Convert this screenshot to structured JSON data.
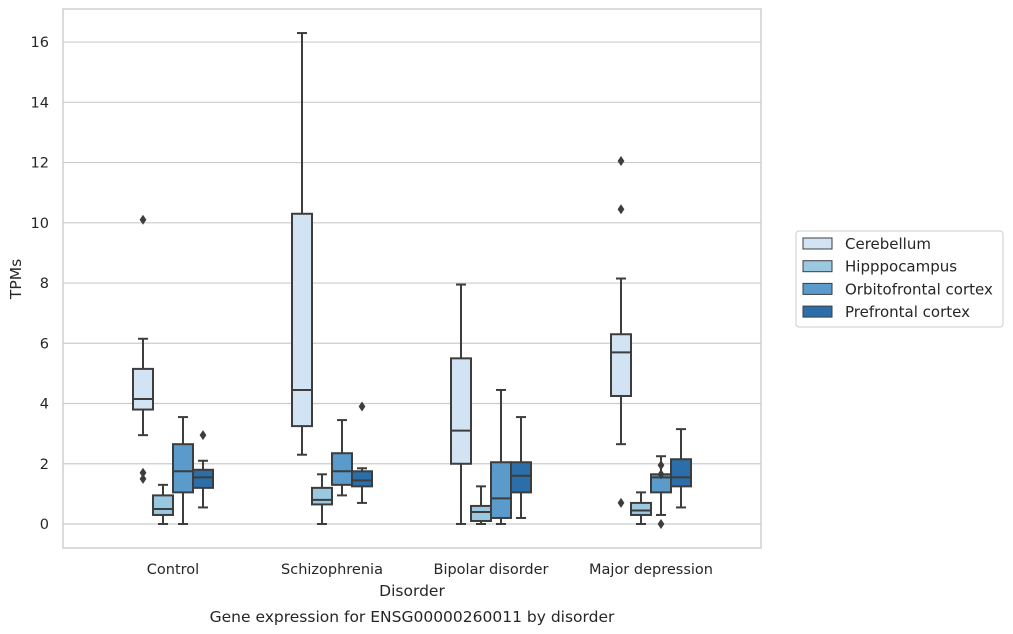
{
  "chart_data": {
    "type": "box",
    "xlabel": "Disorder",
    "ylabel": "TPMs",
    "caption": "Gene expression for ENSG00000260011 by disorder",
    "ylim": [
      -0.8,
      17.1
    ],
    "yticks": [
      0,
      2,
      4,
      6,
      8,
      10,
      12,
      14,
      16
    ],
    "grid": "horizontal",
    "legend_placement": "right",
    "categories": [
      "Control",
      "Schizophrenia",
      "Bipolar disorder",
      "Major depression"
    ],
    "series": [
      {
        "name": "Cerebellum",
        "color": "#d2e3f3",
        "boxes": [
          {
            "whislo": 2.95,
            "q1": 3.8,
            "med": 4.15,
            "q3": 5.15,
            "whishi": 6.15,
            "fliers": [
              10.1,
              1.7,
              1.5
            ]
          },
          {
            "whislo": 2.3,
            "q1": 3.25,
            "med": 4.45,
            "q3": 10.3,
            "whishi": 16.3,
            "fliers": []
          },
          {
            "whislo": 0.0,
            "q1": 2.0,
            "med": 3.1,
            "q3": 5.5,
            "whishi": 7.95,
            "fliers": []
          },
          {
            "whislo": 2.65,
            "q1": 4.25,
            "med": 5.7,
            "q3": 6.3,
            "whishi": 8.15,
            "fliers": [
              12.05,
              10.45,
              0.7
            ]
          }
        ]
      },
      {
        "name": "Hipppocampus",
        "color": "#9ac8e0",
        "boxes": [
          {
            "whislo": 0.0,
            "q1": 0.3,
            "med": 0.5,
            "q3": 0.95,
            "whishi": 1.3,
            "fliers": []
          },
          {
            "whislo": 0.0,
            "q1": 0.65,
            "med": 0.8,
            "q3": 1.2,
            "whishi": 1.65,
            "fliers": []
          },
          {
            "whislo": 0.0,
            "q1": 0.1,
            "med": 0.4,
            "q3": 0.6,
            "whishi": 1.25,
            "fliers": []
          },
          {
            "whislo": 0.0,
            "q1": 0.3,
            "med": 0.45,
            "q3": 0.7,
            "whishi": 1.05,
            "fliers": []
          }
        ]
      },
      {
        "name": "Orbitofrontal cortex",
        "color": "#5a9bcb",
        "boxes": [
          {
            "whislo": 0.0,
            "q1": 1.05,
            "med": 1.75,
            "q3": 2.65,
            "whishi": 3.55,
            "fliers": []
          },
          {
            "whislo": 0.95,
            "q1": 1.3,
            "med": 1.75,
            "q3": 2.35,
            "whishi": 3.45,
            "fliers": []
          },
          {
            "whislo": 0.0,
            "q1": 0.2,
            "med": 0.85,
            "q3": 2.05,
            "whishi": 4.45,
            "fliers": []
          },
          {
            "whislo": 0.3,
            "q1": 1.05,
            "med": 1.55,
            "q3": 1.65,
            "whishi": 2.25,
            "fliers": [
              1.95,
              1.65,
              0.0
            ]
          }
        ]
      },
      {
        "name": "Prefrontal cortex",
        "color": "#2c6ea9",
        "boxes": [
          {
            "whislo": 0.55,
            "q1": 1.2,
            "med": 1.55,
            "q3": 1.8,
            "whishi": 2.1,
            "fliers": [
              2.95
            ]
          },
          {
            "whislo": 0.7,
            "q1": 1.25,
            "med": 1.45,
            "q3": 1.75,
            "whishi": 1.85,
            "fliers": [
              3.9
            ]
          },
          {
            "whislo": 0.2,
            "q1": 1.05,
            "med": 1.6,
            "q3": 2.05,
            "whishi": 3.55,
            "fliers": []
          },
          {
            "whislo": 0.55,
            "q1": 1.25,
            "med": 1.55,
            "q3": 2.15,
            "whishi": 3.15,
            "fliers": []
          }
        ]
      }
    ]
  }
}
